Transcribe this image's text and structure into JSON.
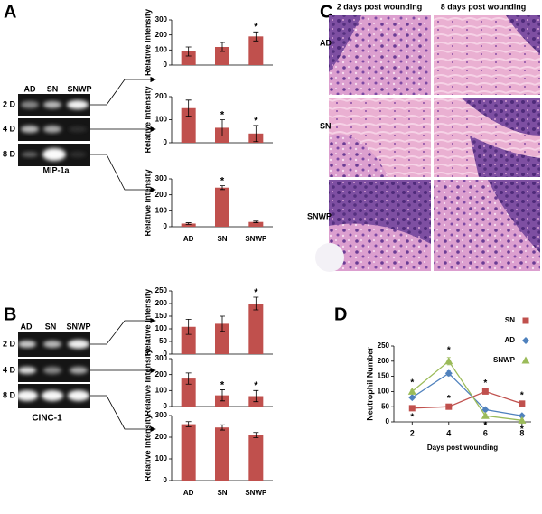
{
  "panels": {
    "A": {
      "letter": "A",
      "lanes": [
        "AD",
        "SN",
        "SNWP"
      ],
      "rows": [
        "2 D",
        "4 D",
        "8 D"
      ],
      "gel_name": "MIP-1a"
    },
    "B": {
      "letter": "B",
      "lanes": [
        "AD",
        "SN",
        "SNWP"
      ],
      "rows": [
        "2 D",
        "4 D",
        "8 D"
      ],
      "gel_name": "CINC-1"
    },
    "C": {
      "letter": "C",
      "columns": [
        "2 days post wounding",
        "8 days post wounding"
      ],
      "rows": [
        "AD",
        "SN",
        "SNWP"
      ]
    },
    "D": {
      "letter": "D"
    }
  },
  "chart_data": [
    {
      "type": "bar",
      "ylabel": "Relative Intensity",
      "categories": [
        null,
        null,
        null
      ],
      "values": [
        90,
        120,
        190
      ],
      "errors": [
        30,
        30,
        30
      ],
      "significance": [
        null,
        null,
        "*"
      ],
      "color": "#c0504d",
      "ylim": [
        0,
        300
      ],
      "yticks": [
        0,
        100,
        200,
        300
      ]
    },
    {
      "type": "bar",
      "ylabel": "Relative Intensity",
      "categories": [
        null,
        null,
        null
      ],
      "values": [
        150,
        65,
        40
      ],
      "errors": [
        35,
        35,
        35
      ],
      "significance": [
        null,
        "*",
        "*"
      ],
      "color": "#c0504d",
      "ylim": [
        0,
        200
      ],
      "yticks": [
        0,
        100,
        200
      ]
    },
    {
      "type": "bar",
      "ylabel": "Relative Intensity",
      "categories": [
        "AD",
        "SN",
        "SNWP"
      ],
      "values": [
        20,
        245,
        30
      ],
      "errors": [
        5,
        12,
        5
      ],
      "significance": [
        null,
        "*",
        null
      ],
      "color": "#c0504d",
      "ylim": [
        0,
        300
      ],
      "yticks": [
        0,
        100,
        200,
        300
      ]
    },
    {
      "type": "bar",
      "ylabel": "Relative Intensity",
      "categories": [
        null,
        null,
        null
      ],
      "values": [
        108,
        120,
        200
      ],
      "errors": [
        30,
        30,
        25
      ],
      "significance": [
        null,
        null,
        "*"
      ],
      "color": "#c0504d",
      "ylim": [
        0,
        250
      ],
      "yticks": [
        0,
        50,
        100,
        150,
        200,
        250
      ]
    },
    {
      "type": "bar",
      "ylabel": "Relative Intensity",
      "categories": [
        null,
        null,
        null
      ],
      "values": [
        175,
        70,
        65
      ],
      "errors": [
        35,
        35,
        35
      ],
      "significance": [
        null,
        "*",
        "*"
      ],
      "color": "#c0504d",
      "ylim": [
        0,
        300
      ],
      "yticks": [
        0,
        100,
        200,
        300
      ]
    },
    {
      "type": "bar",
      "ylabel": "Relative Intensity",
      "categories": [
        "AD",
        "SN",
        "SNWP"
      ],
      "values": [
        260,
        245,
        210
      ],
      "errors": [
        12,
        12,
        12
      ],
      "significance": [
        null,
        null,
        null
      ],
      "color": "#c0504d",
      "ylim": [
        0,
        300
      ],
      "yticks": [
        0,
        100,
        200,
        300
      ]
    },
    {
      "type": "line",
      "ylabel": "Neutrophil Number",
      "xlabel": "Days post wounding",
      "legend": "top-right",
      "x": [
        2,
        4,
        6,
        8
      ],
      "xlim": [
        1,
        8.5
      ],
      "xticks": [
        2,
        4,
        6,
        8
      ],
      "ylim": [
        0,
        250
      ],
      "yticks": [
        0,
        50,
        100,
        150,
        200,
        250
      ],
      "series": [
        {
          "name": "SN",
          "color": "#c0504d",
          "marker": "square",
          "values": [
            45,
            50,
            100,
            60
          ],
          "errors": [
            3,
            3,
            3,
            3
          ],
          "significance": [
            "*",
            "*",
            "*",
            "*"
          ]
        },
        {
          "name": "AD",
          "color": "#4f81bd",
          "marker": "diamond",
          "values": [
            80,
            160,
            40,
            20
          ],
          "errors": [
            5,
            8,
            5,
            3
          ],
          "significance": [
            null,
            null,
            null,
            null
          ]
        },
        {
          "name": "SNWP",
          "color": "#9bbb59",
          "marker": "triangle",
          "values": [
            100,
            200,
            20,
            5
          ],
          "errors": [
            5,
            12,
            5,
            3
          ],
          "significance": [
            "*",
            "*",
            "*",
            "*"
          ]
        }
      ]
    }
  ]
}
